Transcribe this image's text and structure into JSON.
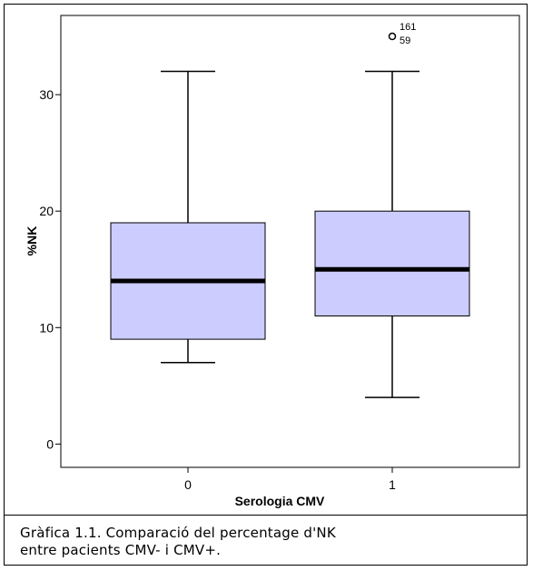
{
  "chart_data": {
    "type": "boxplot",
    "title": "",
    "xlabel": "Serologia CMV",
    "ylabel": "%NK",
    "ylim": [
      -2,
      36.8
    ],
    "yticks": [
      0,
      10,
      20,
      30
    ],
    "categories": [
      "0",
      "1"
    ],
    "box_fill": "#ccccff",
    "boxes": [
      {
        "category": "0",
        "whisker_low": 7,
        "q1": 9,
        "median": 14,
        "q3": 19,
        "whisker_high": 32,
        "outliers": []
      },
      {
        "category": "1",
        "whisker_low": 4,
        "q1": 11,
        "median": 15,
        "q3": 20,
        "whisker_high": 32,
        "outliers": [
          {
            "value": 35,
            "labels": [
              "161",
              "59"
            ]
          }
        ]
      }
    ]
  },
  "caption": {
    "line1": "Gràfica 1.1. Comparació del percentage d'NK",
    "line2": "entre pacients CMV- i CMV+."
  }
}
